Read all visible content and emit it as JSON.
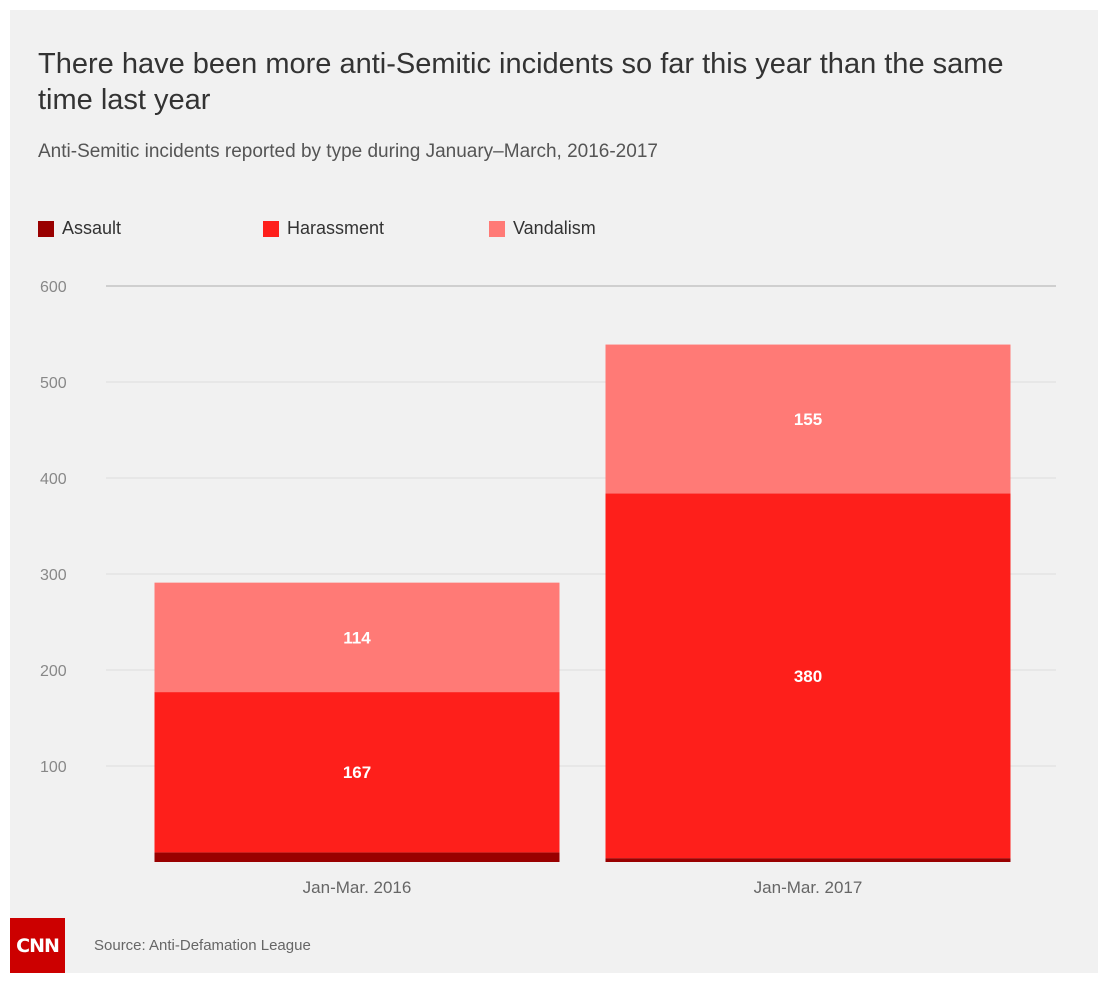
{
  "chart_data": {
    "type": "bar",
    "stacked": true,
    "title": "There have been more anti-Semitic incidents so far this year than the same time last year",
    "subtitle": "Anti-Semitic incidents reported by type during January–March, 2016-2017",
    "categories": [
      "Jan-Mar. 2016",
      "Jan-Mar. 2017"
    ],
    "series": [
      {
        "name": "Assault",
        "color": "#990000",
        "values": [
          10,
          4
        ],
        "labels": [
          "",
          ""
        ]
      },
      {
        "name": "Harassment",
        "color": "#fe1f1b",
        "values": [
          167,
          380
        ],
        "labels": [
          "167",
          "380"
        ]
      },
      {
        "name": "Vandalism",
        "color": "#ff7a76",
        "values": [
          114,
          155
        ],
        "labels": [
          "114",
          "155"
        ]
      }
    ],
    "ylim": [
      0,
      600
    ],
    "yticks": [
      100,
      200,
      300,
      400,
      500,
      600
    ],
    "xlabel": "",
    "ylabel": "",
    "grid": true,
    "legend": "top-left"
  },
  "footer": {
    "logo_text": "CNN",
    "source": "Source: Anti-Defamation League"
  }
}
